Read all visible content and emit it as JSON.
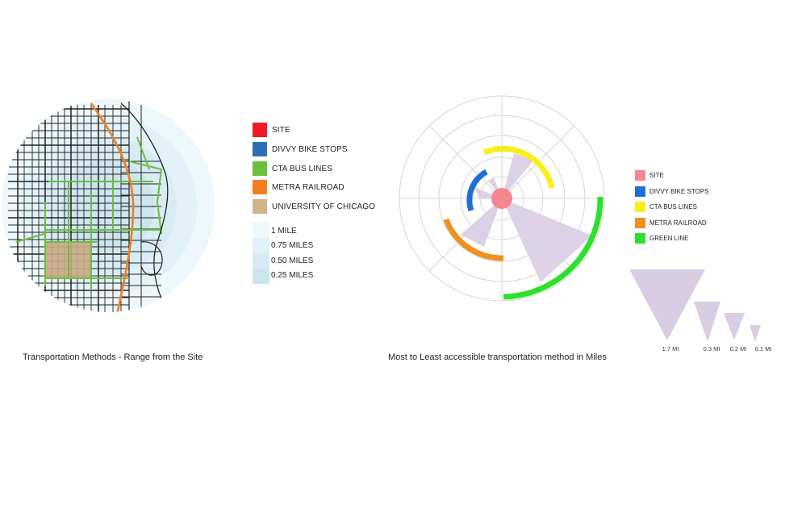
{
  "map_panel": {
    "caption": "Transportation Methods - Range from the Site",
    "legend": [
      {
        "label": "SITE",
        "color": "#ef1c25"
      },
      {
        "label": "DIVVY BIKE STOPS",
        "color": "#2f6eb5"
      },
      {
        "label": "CTA BUS LINES",
        "color": "#6abf3d"
      },
      {
        "label": "METRA RAILROAD",
        "color": "#f07f22"
      },
      {
        "label": "UNIVERSITY OF CHICAGO",
        "color": "#d2b48c"
      }
    ],
    "ranges": [
      {
        "label": "1 MILE",
        "color": "#eef7fb"
      },
      {
        "label": "0.75 MILES",
        "color": "#e2f1f7"
      },
      {
        "label": "0.50 MILES",
        "color": "#d6ebf3"
      },
      {
        "label": "0.25 MILES",
        "color": "#cbe5ef"
      }
    ]
  },
  "radial_panel": {
    "caption": "Most to Least accessible transportation method in Miles",
    "legend": [
      {
        "label": "SITE",
        "color": "#f4878f"
      },
      {
        "label": "DIVVY BIKE STOPS",
        "color": "#1e6fd9"
      },
      {
        "label": "CTA BUS LINES",
        "color": "#f7ef1b"
      },
      {
        "label": "METRA RAILROAD",
        "color": "#f0901e"
      },
      {
        "label": "GREEN LINE",
        "color": "#2ee02e"
      }
    ],
    "wedge_color": "#d9cde3",
    "scale": [
      {
        "label": "1.7 MI",
        "miles": 1.7
      },
      {
        "label": "0.3 MI",
        "miles": 0.3
      },
      {
        "label": "0.2 MI",
        "miles": 0.2
      },
      {
        "label": "0.1 MI",
        "miles": 0.1
      }
    ]
  }
}
